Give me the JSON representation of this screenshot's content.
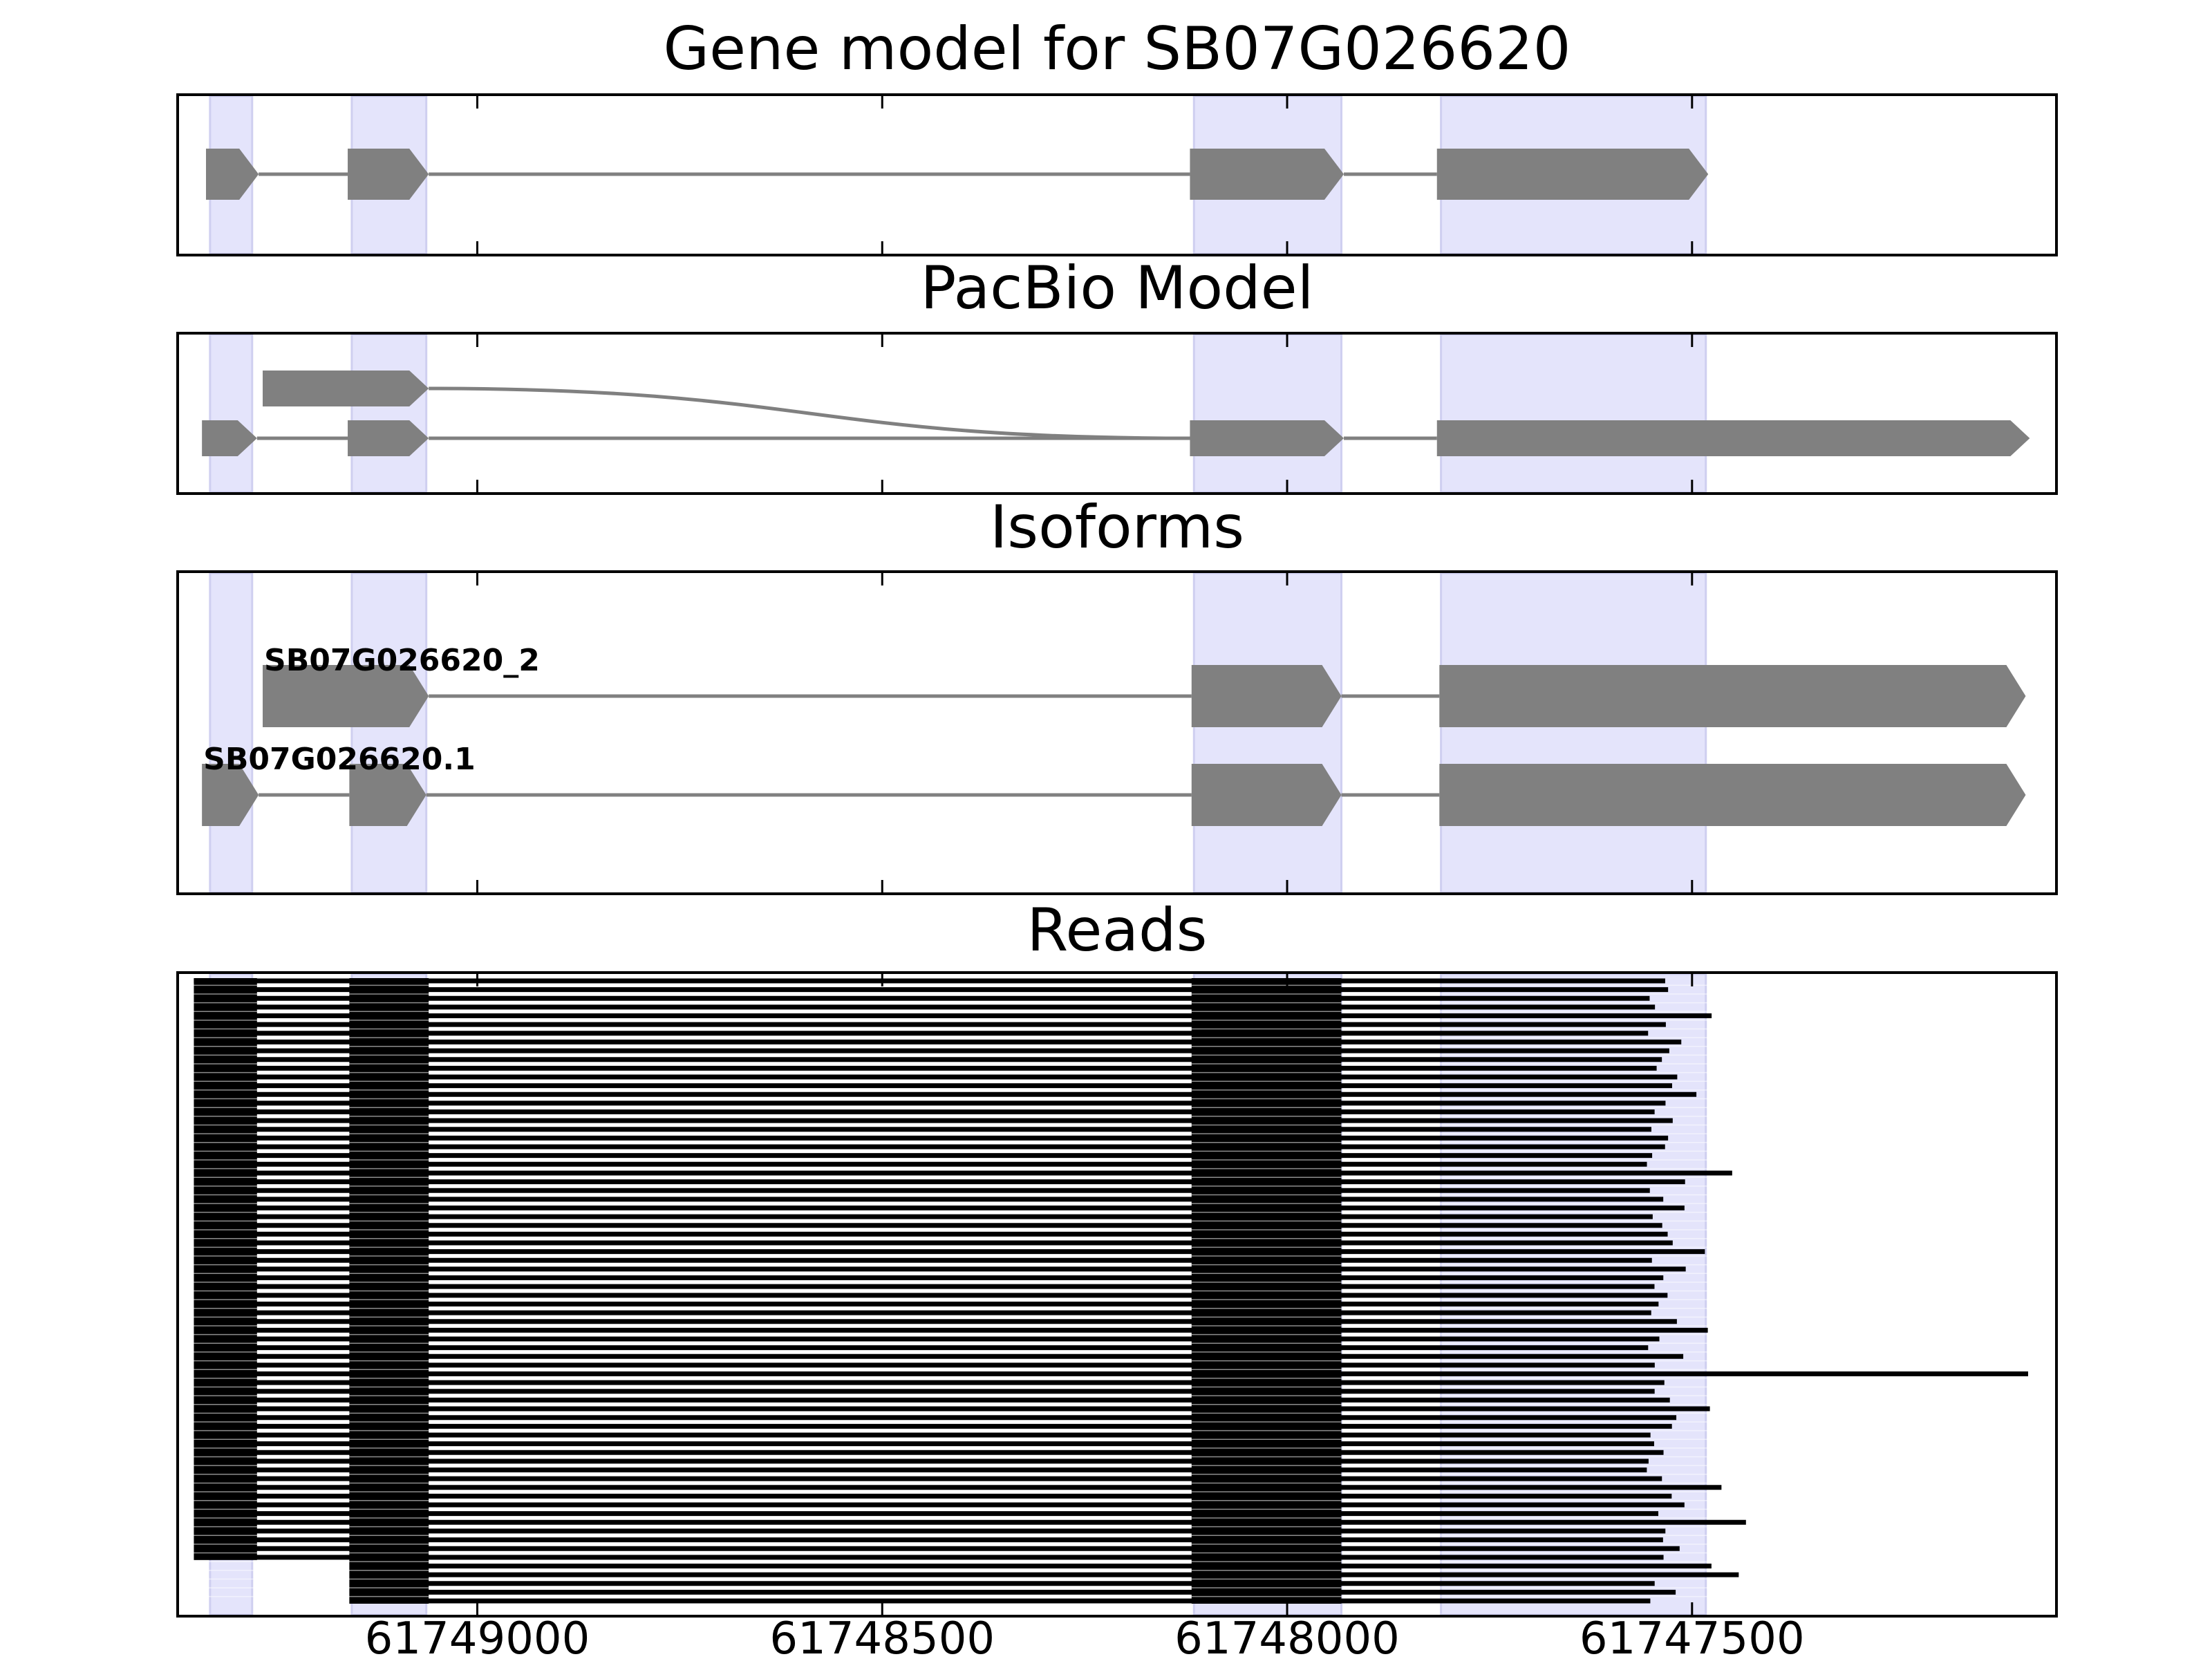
{
  "chart_data": {
    "type": "gene-structure",
    "x_axis": {
      "inverted": true,
      "xlim": [
        61749370,
        61747050
      ],
      "ticks": [
        61749000,
        61748500,
        61748000,
        61747500
      ],
      "tick_labels": [
        "61749000",
        "61748500",
        "61748000",
        "61747500"
      ]
    },
    "highlight_color": "#e4e4fb",
    "feature_color": "#808080",
    "exon_regions": [
      [
        61749330,
        61749278
      ],
      [
        61749155,
        61749063
      ],
      [
        61748115,
        61747933
      ],
      [
        61747810,
        61747483
      ]
    ],
    "panels": [
      {
        "title": "Gene model for SB07G026620",
        "tracks": [
          {
            "label": "",
            "exons": [
              [
                61749335,
                61749270
              ],
              [
                61749160,
                61749060
              ],
              [
                61748120,
                61747930
              ],
              [
                61747815,
                61747480
              ]
            ]
          }
        ]
      },
      {
        "title": "PacBio Model",
        "tracks": [
          {
            "label": "",
            "exons": [
              [
                61749265,
                61749060
              ]
            ],
            "joins_to": 61748120
          },
          {
            "label": "",
            "exons": [
              [
                61749340,
                61749272
              ],
              [
                61749160,
                61749060
              ],
              [
                61748120,
                61747930
              ],
              [
                61747815,
                61747083
              ]
            ]
          }
        ]
      },
      {
        "title": "Isoforms",
        "tracks": [
          {
            "label": "SB07G026620_2",
            "exons": [
              [
                61749265,
                61749060
              ],
              [
                61748118,
                61747933
              ],
              [
                61747812,
                61747088
              ]
            ]
          },
          {
            "label": "SB07G026620.1",
            "exons": [
              [
                61749340,
                61749270
              ],
              [
                61749158,
                61749063
              ],
              [
                61748118,
                61747933
              ],
              [
                61747812,
                61747088
              ]
            ]
          }
        ]
      },
      {
        "title": "Reads",
        "read_block_starts": [
          61749350,
          61749158,
          61748118,
          61747812
        ],
        "read_block_ends": [
          61749272,
          61749060,
          61747933,
          61747490
        ],
        "read_count": 72
      }
    ]
  }
}
